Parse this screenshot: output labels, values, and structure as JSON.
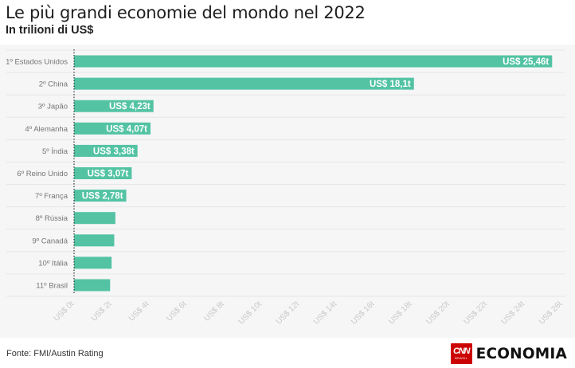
{
  "header": {
    "title": "Le più grandi economie del mondo nel 2022",
    "subtitle": "In trilioni di US$"
  },
  "footer": {
    "source": "Fonte: FMI/Austin Rating",
    "brand_logo": "CNN",
    "brand_logo_sub": "BRASIL",
    "brand_name": "ECONOMIA"
  },
  "colors": {
    "bar": "#53c3a3",
    "panel": "#f6f6f6",
    "gridline": "#e6e6e6",
    "brand_red": "#cc0000",
    "brand_accent": "#4ac2a8"
  },
  "chart_data": {
    "type": "bar",
    "orientation": "horizontal",
    "title": "Le più grandi economie del mondo nel 2022",
    "subtitle": "In trilioni di US$",
    "categories": [
      "1º Estados Unidos",
      "2º China",
      "3º Japão",
      "4º Alemanha",
      "5º Índia",
      "6º Reino Unido",
      "7º França",
      "8º Rússia",
      "9º Canadá",
      "10º Itália",
      "11º Brasil"
    ],
    "values": [
      25.46,
      18.1,
      4.23,
      4.07,
      3.38,
      3.07,
      2.78,
      2.2,
      2.14,
      2.0,
      1.92
    ],
    "data_labels": [
      "US$ 25,46t",
      "US$ 18,1t",
      "US$ 4,23t",
      "US$ 4,07t",
      "US$ 3,38t",
      "US$ 3,07t",
      "US$ 2,78t",
      "",
      "",
      "",
      ""
    ],
    "x_ticks": [
      0,
      2,
      4,
      6,
      8,
      10,
      12,
      14,
      16,
      18,
      20,
      22,
      24,
      26
    ],
    "x_tick_labels": [
      "US$ 0t",
      "US$ 2t",
      "US$ 4t",
      "US$ 6t",
      "US$ 8t",
      "US$ 10t",
      "US$ 12t",
      "US$ 14t",
      "US$ 16t",
      "US$ 18t",
      "US$ 20t",
      "US$ 22t",
      "US$ 24t",
      "US$ 26t"
    ],
    "xlim": [
      0,
      26
    ],
    "grid": "horizontal",
    "legend": "none"
  }
}
